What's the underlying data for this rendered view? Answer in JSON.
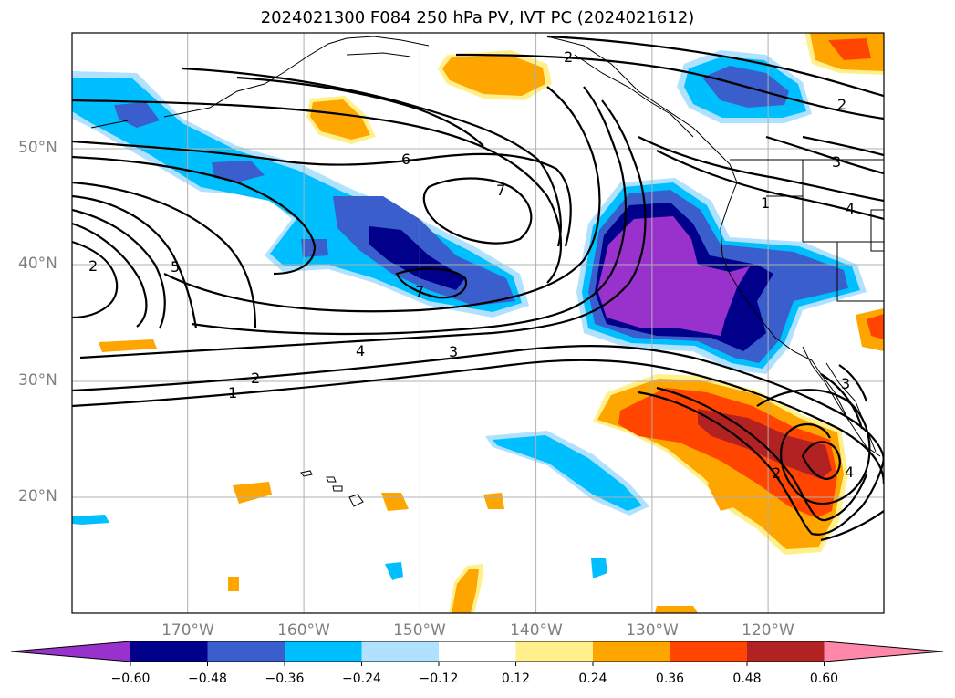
{
  "title": "2024021300 F084 250 hPa PV, IVT PC (2024021612)",
  "map": {
    "projection": "PlateCarree",
    "extent": {
      "lon_west": -180,
      "lon_east": -110,
      "lat_south": 10,
      "lat_north": 60
    },
    "gridlines": true,
    "lat_labels": [
      "50°N",
      "40°N",
      "30°N",
      "20°N"
    ],
    "lon_labels": [
      "170°W",
      "160°W",
      "150°W",
      "140°W",
      "130°W",
      "120°W"
    ],
    "contour_labels": [
      "2",
      "2",
      "6",
      "7",
      "7",
      "5",
      "4",
      "3",
      "2",
      "1",
      "2",
      "3",
      "2",
      "4",
      "1",
      "3",
      "4"
    ]
  },
  "colorbar": {
    "ticks": [
      "−0.60",
      "−0.48",
      "−0.36",
      "−0.24",
      "−0.12",
      "0.12",
      "0.24",
      "0.36",
      "0.48",
      "0.60"
    ],
    "colors": [
      "#9932cc",
      "#00008b",
      "#3a5fcd",
      "#00bfff",
      "#b0e2ff",
      "#ffffff",
      "#fff08c",
      "#ffa500",
      "#ff4500",
      "#b22222",
      "#ff88aa"
    ],
    "extend": "both"
  },
  "colors": {
    "purple": "#9932cc",
    "navy": "#00008b",
    "blue": "#3a5fcd",
    "cyan": "#00bfff",
    "lightblue": "#b0e2ff",
    "yellow": "#fff08c",
    "orange": "#ffa500",
    "redorange": "#ff4500",
    "darkred": "#b22222",
    "pink": "#ff88aa"
  }
}
